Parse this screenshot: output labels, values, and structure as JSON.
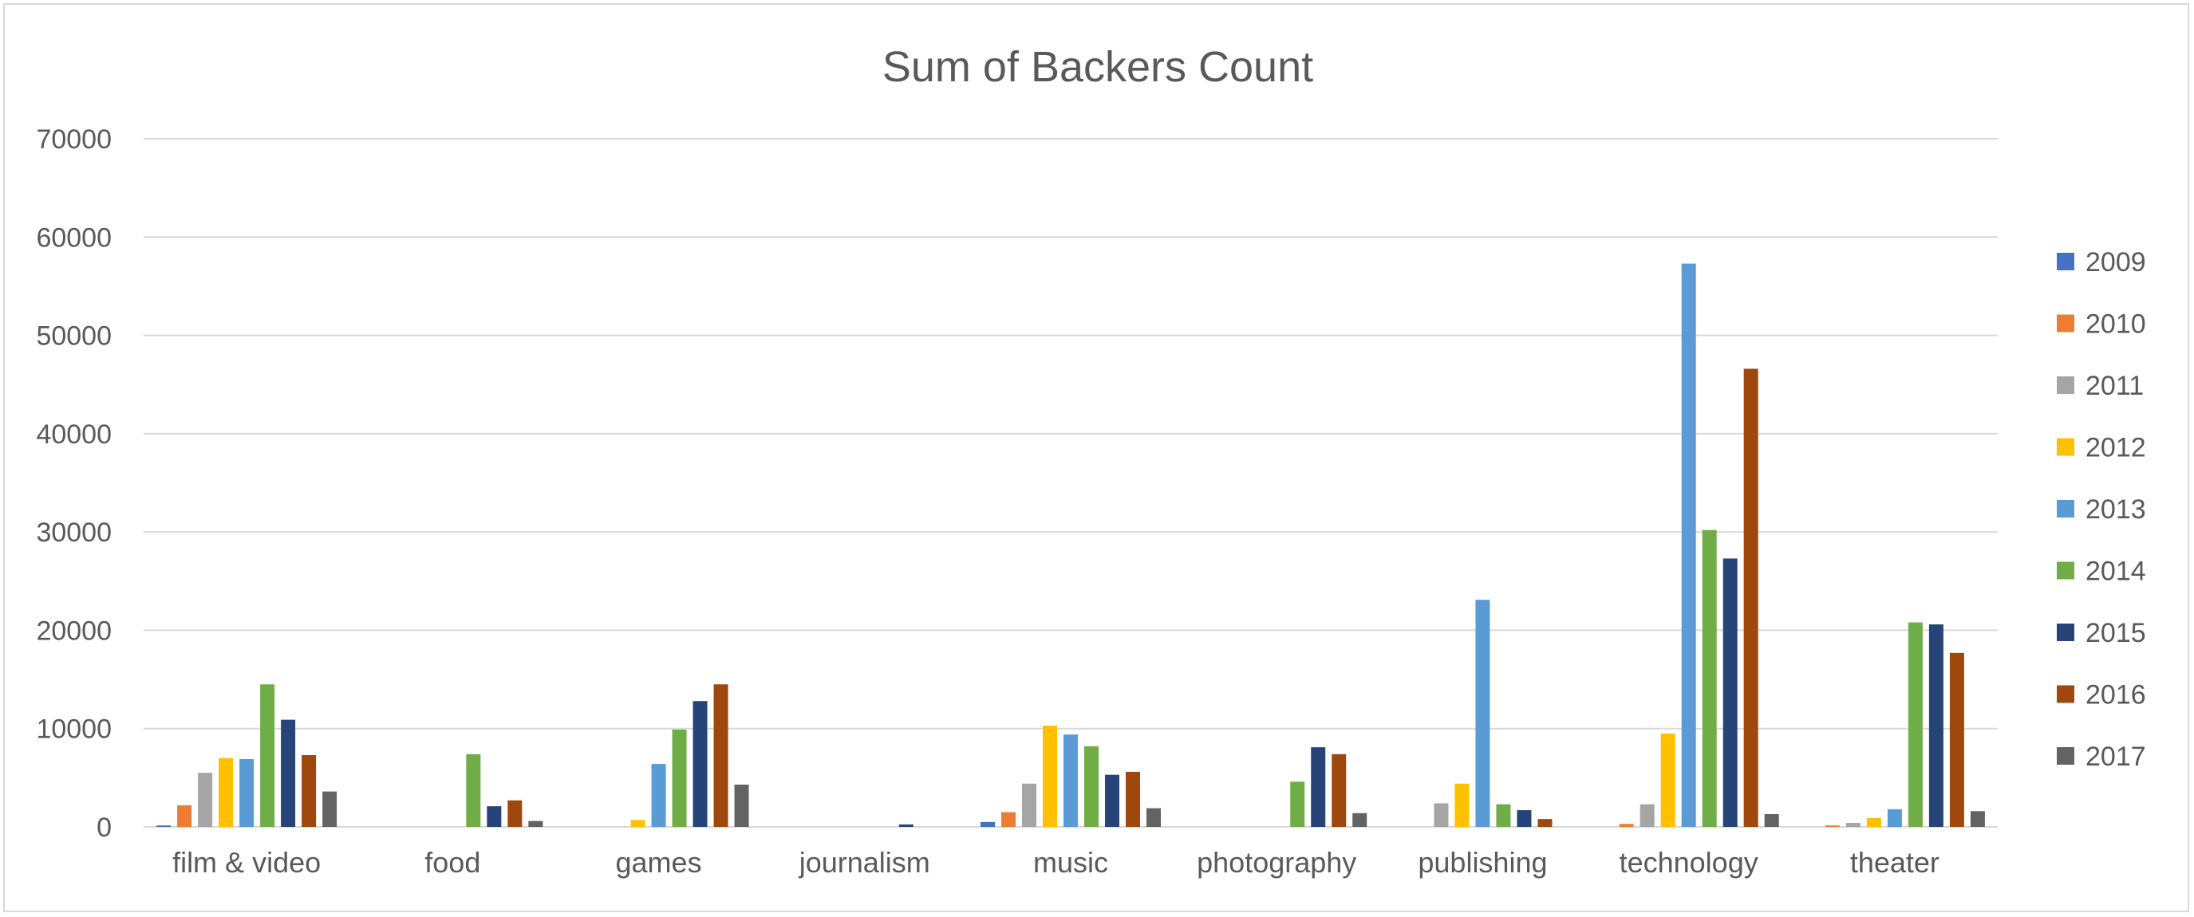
{
  "chart_data": {
    "type": "bar",
    "title": "Sum of Backers Count",
    "xlabel": "",
    "ylabel": "",
    "ylim": [
      0,
      70000
    ],
    "yticks": [
      0,
      10000,
      20000,
      30000,
      40000,
      50000,
      60000,
      70000
    ],
    "grid": true,
    "legend_position": "right",
    "categories": [
      "film & video",
      "food",
      "games",
      "journalism",
      "music",
      "photography",
      "publishing",
      "technology",
      "theater"
    ],
    "series": [
      {
        "name": "2009",
        "color": "#4472C4",
        "values": [
          150,
          0,
          0,
          0,
          500,
          0,
          0,
          0,
          0
        ]
      },
      {
        "name": "2010",
        "color": "#ED7D31",
        "values": [
          2200,
          0,
          0,
          0,
          1500,
          0,
          0,
          300,
          150
        ]
      },
      {
        "name": "2011",
        "color": "#A5A5A5",
        "values": [
          5500,
          0,
          0,
          0,
          4400,
          0,
          2400,
          2300,
          400
        ]
      },
      {
        "name": "2012",
        "color": "#FFC000",
        "values": [
          7000,
          0,
          700,
          0,
          10300,
          0,
          4400,
          9500,
          900
        ]
      },
      {
        "name": "2013",
        "color": "#5B9BD5",
        "values": [
          6900,
          0,
          6400,
          0,
          9400,
          0,
          23100,
          57300,
          1800
        ]
      },
      {
        "name": "2014",
        "color": "#70AD47",
        "values": [
          14500,
          7400,
          9900,
          0,
          8200,
          4600,
          2300,
          30200,
          20800
        ]
      },
      {
        "name": "2015",
        "color": "#264478",
        "values": [
          10900,
          2100,
          12800,
          250,
          5300,
          8100,
          1700,
          27300,
          20600
        ]
      },
      {
        "name": "2016",
        "color": "#9E480E",
        "values": [
          7300,
          2700,
          14500,
          0,
          5600,
          7400,
          800,
          46600,
          17700
        ]
      },
      {
        "name": "2017",
        "color": "#636363",
        "values": [
          3600,
          600,
          4300,
          0,
          1900,
          1400,
          0,
          1300,
          1600
        ]
      }
    ]
  }
}
